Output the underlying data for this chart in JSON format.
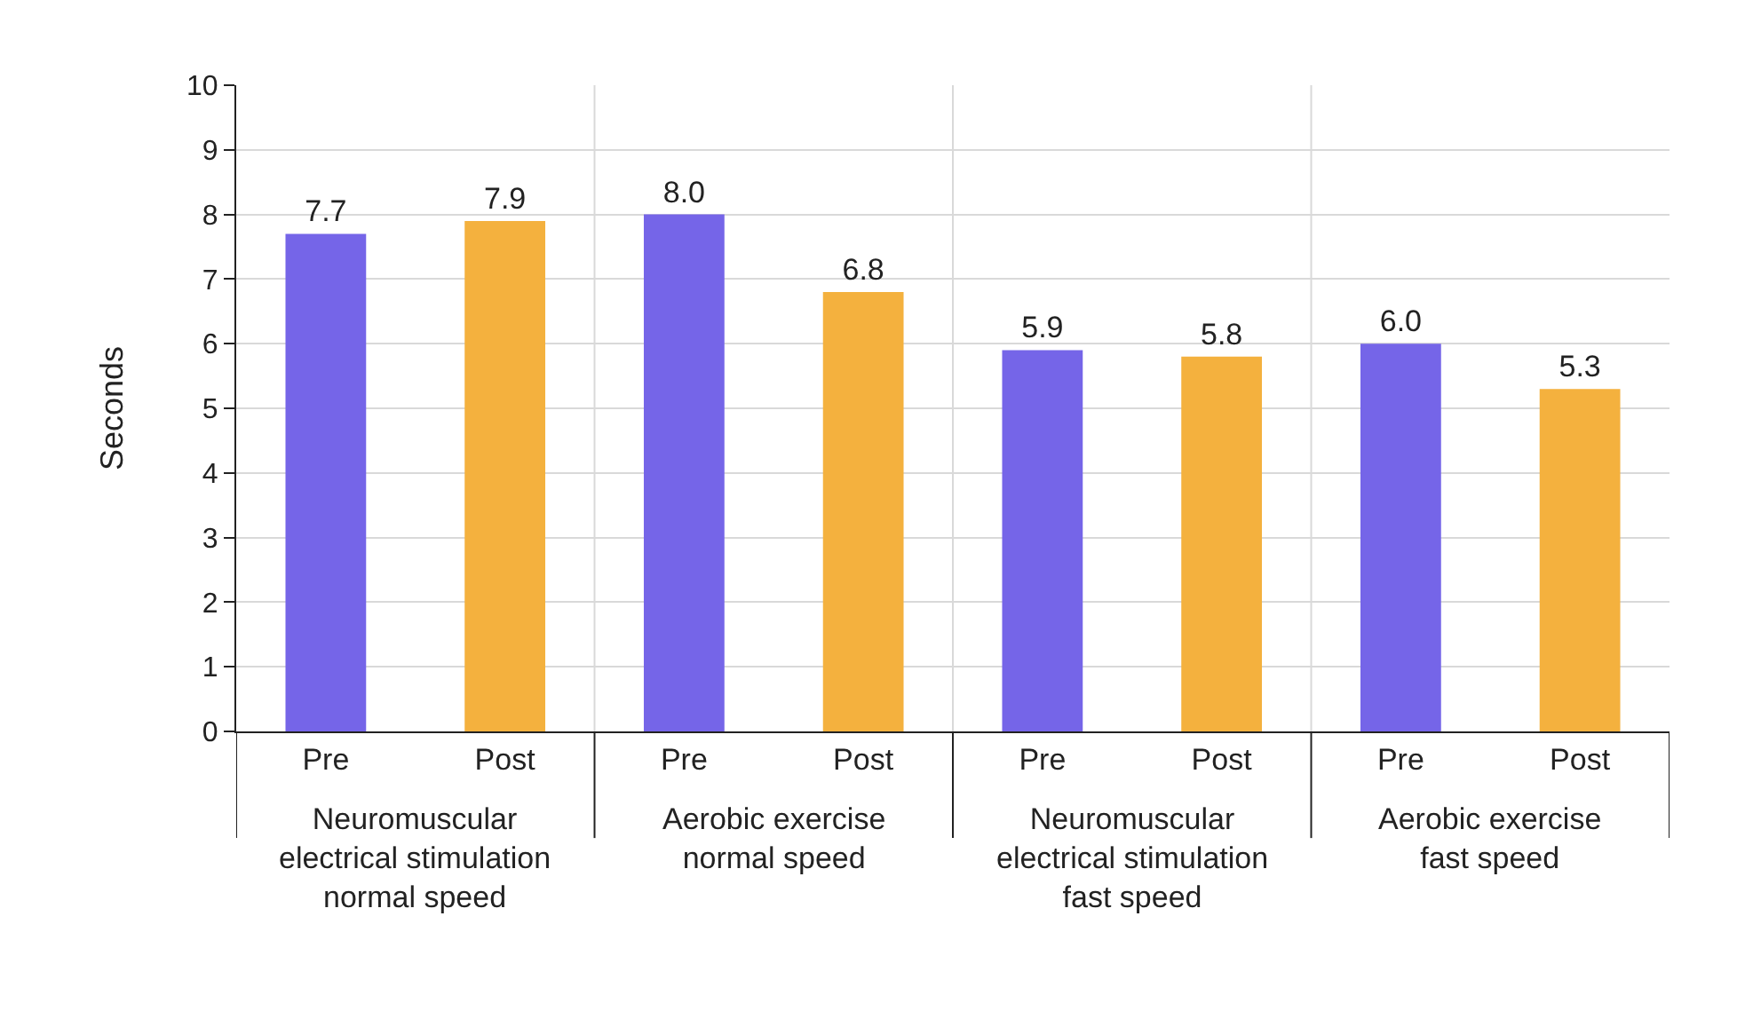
{
  "chart_data": {
    "type": "bar",
    "ylabel": "Seconds",
    "categories": [
      "Pre",
      "Post",
      "Pre",
      "Post",
      "Pre",
      "Post",
      "Pre",
      "Post"
    ],
    "values": [
      7.7,
      7.9,
      8.0,
      6.8,
      5.9,
      5.8,
      6.0,
      5.3
    ],
    "colors": [
      "#7565e8",
      "#f4b13e",
      "#7565e8",
      "#f4b13e",
      "#7565e8",
      "#f4b13e",
      "#7565e8",
      "#f4b13e"
    ],
    "value_labels": [
      "7.7",
      "7.9",
      "8.0",
      "6.8",
      "5.9",
      "5.8",
      "6.0",
      "5.3"
    ],
    "ylim": [
      0,
      10
    ],
    "yticks": [
      0,
      1,
      2,
      3,
      4,
      5,
      6,
      7,
      8,
      9,
      10
    ],
    "grid": true,
    "annotations": [
      "Neuromuscular\nelectrical stimulation\nnormal speed",
      "Aerobic exercise\nnormal speed",
      "Neuromuscular\nelectrical stimulation\nfast speed",
      "Aerobic exercise\nfast speed"
    ]
  }
}
